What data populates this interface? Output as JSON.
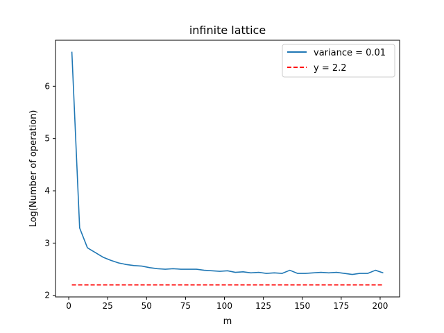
{
  "chart_data": {
    "type": "line",
    "title": "infinite lattice",
    "xlabel": "m",
    "ylabel": "Log(Number of operation)",
    "xlim": [
      -8.5,
      212.5
    ],
    "ylim": [
      1.97,
      6.88
    ],
    "xticks": [
      0,
      25,
      50,
      75,
      100,
      125,
      150,
      175,
      200
    ],
    "yticks": [
      2,
      3,
      4,
      5,
      6
    ],
    "grid": false,
    "legend_position": "upper right",
    "series": [
      {
        "name": "variance = 0.01",
        "color": "#1f77b4",
        "style": "solid",
        "x": [
          2,
          7,
          12,
          17,
          22,
          27,
          32,
          37,
          42,
          47,
          52,
          57,
          62,
          67,
          72,
          77,
          82,
          87,
          92,
          97,
          102,
          107,
          112,
          117,
          122,
          127,
          132,
          137,
          142,
          147,
          152,
          157,
          162,
          167,
          172,
          177,
          182,
          187,
          192,
          197,
          202
        ],
        "y": [
          6.66,
          3.29,
          2.91,
          2.82,
          2.73,
          2.67,
          2.62,
          2.59,
          2.57,
          2.56,
          2.53,
          2.51,
          2.5,
          2.51,
          2.5,
          2.5,
          2.5,
          2.48,
          2.47,
          2.46,
          2.47,
          2.44,
          2.45,
          2.43,
          2.44,
          2.42,
          2.43,
          2.42,
          2.48,
          2.42,
          2.42,
          2.43,
          2.44,
          2.43,
          2.44,
          2.42,
          2.4,
          2.42,
          2.42,
          2.48,
          2.43
        ]
      },
      {
        "name": "y = 2.2",
        "color": "#ff0000",
        "style": "dashed",
        "x": [
          2,
          202
        ],
        "y": [
          2.2,
          2.2
        ]
      }
    ]
  }
}
